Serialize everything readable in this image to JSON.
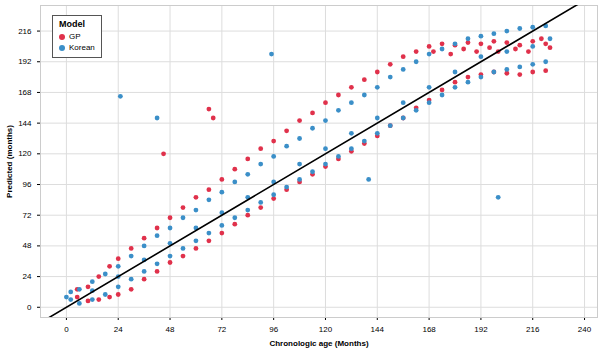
{
  "chart_data": {
    "type": "scatter",
    "x_label": "Chronologic age (Months)",
    "y_label": "Predicted (months)",
    "legend_title": "Model",
    "legend": "top-left",
    "grid": true,
    "xlim": [
      -12,
      246
    ],
    "ylim": [
      -8,
      236
    ],
    "xticks": [
      0,
      24,
      48,
      72,
      96,
      120,
      144,
      168,
      192,
      216,
      240
    ],
    "yticks": [
      0,
      24,
      48,
      72,
      96,
      120,
      144,
      168,
      192,
      216
    ],
    "identity_line": {
      "x": [
        -12,
        246
      ],
      "y": [
        -12,
        246
      ]
    },
    "series": [
      {
        "name": "GP",
        "color": "#e0314b",
        "x": [
          5,
          10,
          15,
          20,
          24,
          30,
          36,
          42,
          48,
          54,
          60,
          66,
          72,
          78,
          84,
          90,
          96,
          102,
          108,
          114,
          120,
          126,
          132,
          138,
          144,
          150,
          156,
          162,
          168,
          174,
          180,
          186,
          192,
          198,
          204,
          210,
          216,
          222,
          5,
          10,
          15,
          20,
          24,
          30,
          36,
          42,
          48,
          54,
          60,
          66,
          72,
          78,
          84,
          90,
          96,
          102,
          108,
          114,
          120,
          126,
          132,
          138,
          144,
          150,
          156,
          162,
          168,
          174,
          180,
          186,
          192,
          198,
          204,
          210,
          216,
          222,
          170,
          178,
          184,
          190,
          196,
          200,
          208,
          214,
          220,
          224,
          66,
          68,
          45
        ],
        "values": [
          8,
          5,
          6,
          8,
          10,
          14,
          22,
          28,
          35,
          40,
          46,
          52,
          58,
          65,
          72,
          78,
          85,
          92,
          98,
          104,
          110,
          116,
          122,
          128,
          134,
          142,
          148,
          156,
          162,
          170,
          176,
          180,
          182,
          184,
          183,
          182,
          184,
          185,
          14,
          16,
          24,
          32,
          38,
          46,
          54,
          62,
          70,
          78,
          86,
          92,
          100,
          108,
          116,
          124,
          130,
          138,
          146,
          152,
          160,
          166,
          172,
          178,
          184,
          190,
          196,
          200,
          204,
          206,
          205,
          207,
          206,
          208,
          207,
          205,
          208,
          206,
          200,
          198,
          202,
          200,
          203,
          200,
          202,
          200,
          210,
          203,
          155,
          148,
          120
        ]
      },
      {
        "name": "Korean",
        "color": "#3b8fc8",
        "x": [
          2,
          6,
          12,
          18,
          24,
          30,
          36,
          42,
          48,
          54,
          60,
          66,
          72,
          78,
          84,
          90,
          96,
          102,
          108,
          114,
          120,
          126,
          132,
          138,
          144,
          150,
          156,
          162,
          168,
          174,
          180,
          186,
          192,
          198,
          204,
          210,
          216,
          222,
          2,
          6,
          12,
          18,
          24,
          30,
          36,
          42,
          48,
          54,
          60,
          66,
          72,
          78,
          84,
          90,
          96,
          102,
          108,
          114,
          120,
          126,
          132,
          138,
          144,
          150,
          156,
          162,
          168,
          174,
          180,
          186,
          192,
          198,
          204,
          210,
          216,
          222,
          0,
          12,
          24,
          36,
          48,
          60,
          72,
          84,
          96,
          108,
          120,
          132,
          144,
          156,
          168,
          180,
          192,
          204,
          216,
          224,
          25,
          42,
          95,
          200,
          140
        ],
        "values": [
          6,
          3,
          6,
          10,
          16,
          22,
          28,
          34,
          40,
          46,
          52,
          58,
          64,
          70,
          76,
          82,
          88,
          94,
          100,
          106,
          112,
          118,
          124,
          130,
          136,
          142,
          148,
          154,
          160,
          166,
          172,
          176,
          180,
          184,
          186,
          188,
          190,
          192,
          12,
          14,
          20,
          26,
          32,
          40,
          48,
          56,
          62,
          70,
          76,
          84,
          90,
          98,
          104,
          112,
          118,
          126,
          132,
          140,
          146,
          154,
          160,
          166,
          172,
          180,
          186,
          192,
          198,
          202,
          206,
          210,
          212,
          214,
          216,
          218,
          219,
          220,
          8,
          13,
          24,
          37,
          50,
          62,
          74,
          86,
          98,
          112,
          124,
          136,
          148,
          160,
          172,
          184,
          196,
          200,
          204,
          210,
          165,
          148,
          198,
          86,
          100
        ]
      }
    ]
  }
}
